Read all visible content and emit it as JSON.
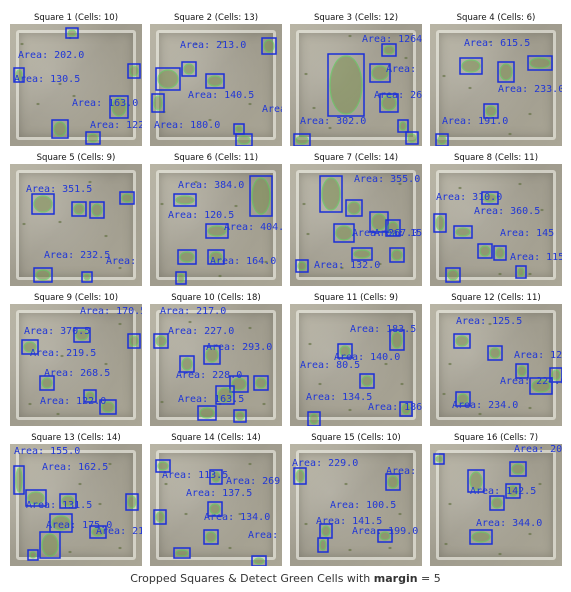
{
  "caption": {
    "prefix": "Cropped Squares & Detect Green Cells with ",
    "param": "margin",
    "suffix": " = 5"
  },
  "colors": {
    "box": "#1a2fd8",
    "cell": "#49d24a",
    "text": "#2137d6"
  },
  "squares": [
    {
      "title": "Square 1 (Cells: 10)",
      "areas": [
        "Area: 202.0",
        "Area: 130.5",
        "Area: 163.0",
        "Area: 122.5"
      ]
    },
    {
      "title": "Square 2 (Cells: 13)",
      "areas": [
        "Area: 213.0",
        "Area: 140.5",
        "Area: 19",
        "Area: 180.0"
      ]
    },
    {
      "title": "Square 3 (Cells: 12)",
      "areas": [
        "Area: 1264.5",
        "Area: 325.",
        "Area: 262.0",
        "Area: 302.0"
      ]
    },
    {
      "title": "Square 4 (Cells: 6)",
      "areas": [
        "Area: 615.5",
        "Area: 233.0",
        "Area: 191.0"
      ]
    },
    {
      "title": "Square 5 (Cells: 9)",
      "areas": [
        "Area: 351.5",
        "Area: 232.5",
        "Area: 156.5"
      ]
    },
    {
      "title": "Square 6 (Cells: 11)",
      "areas": [
        "Area: 384.0",
        "Area: 120.5",
        "Area: 404.5",
        "Area: 164.0"
      ]
    },
    {
      "title": "Square 7 (Cells: 14)",
      "areas": [
        "Area: 355.0",
        "Area: 267.0",
        "Area: 153.5",
        "Area: 132.0"
      ]
    },
    {
      "title": "Square 8 (Cells: 11)",
      "areas": [
        "Area: 310.0",
        "Area: 360.5",
        "Area: 145",
        "Area: 115"
      ]
    },
    {
      "title": "Square 9 (Cells: 10)",
      "areas": [
        "Area: 170.5",
        "Area: 370.5",
        "Area: 219.5",
        "Area: 268.5",
        "Area: 122.0"
      ]
    },
    {
      "title": "Square 10 (Cells: 18)",
      "areas": [
        "Area: 217.0",
        "Area: 227.0",
        "Area: 293.0",
        "Area: 228.0",
        "Area: 163.5"
      ]
    },
    {
      "title": "Square 11 (Cells: 9)",
      "areas": [
        "Area: 183.5",
        "Area: 140.0",
        "Area: 80.5",
        "Area: 134.5",
        "Area: 186"
      ]
    },
    {
      "title": "Square 12 (Cells: 11)",
      "areas": [
        "Area: 125.5",
        "Area: 124.",
        "Area: 224.0",
        "Area: 234.0"
      ]
    },
    {
      "title": "Square 13 (Cells: 14)",
      "areas": [
        "Area: 155.0",
        "Area: 162.5",
        "Area: 131.5",
        "Area: 175.0",
        "Area: 21"
      ]
    },
    {
      "title": "Square 14 (Cells: 14)",
      "areas": [
        "Area: 113.5",
        "Area: 269.0",
        "Area: 137.5",
        "Area: 134.0",
        "Area: 201"
      ]
    },
    {
      "title": "Square 15 (Cells: 10)",
      "areas": [
        "Area: 229.0",
        "Area: 19",
        "Area: 100.5",
        "Area: 141.5",
        "Area: 199.0"
      ]
    },
    {
      "title": "Square 16 (Cells: 7)",
      "areas": [
        "Area: 201",
        "Area: 142.5",
        "Area: 344.0"
      ]
    }
  ]
}
